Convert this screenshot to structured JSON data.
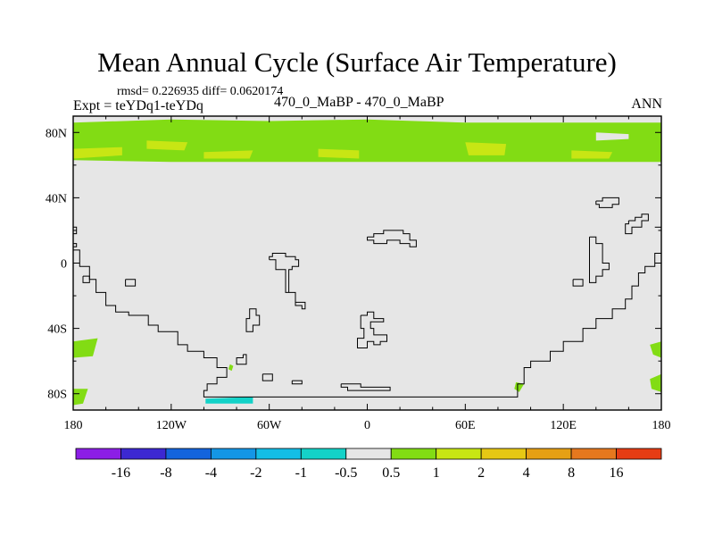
{
  "title": "Mean Annual Cycle (Surface Air Temperature)",
  "stats_text": "rmsd= 0.226935 diff= 0.0620174",
  "experiment_label": "Expt = teYDq1-teYDq",
  "case_label": "470_0_MaBP - 470_0_MaBP",
  "season_label": "ANN",
  "chart_data": {
    "type": "contour-map",
    "variable": "Surface Air Temperature difference",
    "xlim": [
      -180,
      180
    ],
    "ylim": [
      -90,
      90
    ],
    "x_ticks": [
      {
        "value": -180,
        "label": "180"
      },
      {
        "value": -120,
        "label": "120W"
      },
      {
        "value": -60,
        "label": "60W"
      },
      {
        "value": 0,
        "label": "0"
      },
      {
        "value": 60,
        "label": "60E"
      },
      {
        "value": 120,
        "label": "120E"
      },
      {
        "value": 180,
        "label": "180"
      }
    ],
    "y_ticks": [
      {
        "value": 80,
        "label": "80N"
      },
      {
        "value": 40,
        "label": "40N"
      },
      {
        "value": 0,
        "label": "0"
      },
      {
        "value": -40,
        "label": "40S"
      },
      {
        "value": -80,
        "label": "80S"
      }
    ],
    "colorbar": {
      "labels": [
        "-16",
        "-8",
        "-4",
        "-2",
        "-1",
        "-0.5",
        "0.5",
        "1",
        "2",
        "4",
        "8",
        "16"
      ],
      "colors": [
        "#8c1ee6",
        "#3c28d2",
        "#1464dc",
        "#1496e6",
        "#14bee6",
        "#14d2c8",
        "#e6e6e6",
        "#82dc14",
        "#c8e614",
        "#e6c814",
        "#e6a014",
        "#e6781e",
        "#e63c14"
      ]
    },
    "background_color": "#e6e6e6",
    "regions": [
      {
        "name": "arctic-band",
        "level": "0.5 to 1",
        "color": "#82dc14",
        "polygon": [
          [
            -180,
            86
          ],
          [
            -120,
            88
          ],
          [
            -60,
            87
          ],
          [
            0,
            88
          ],
          [
            60,
            86
          ],
          [
            120,
            86
          ],
          [
            180,
            86
          ],
          [
            180,
            62
          ],
          [
            120,
            62
          ],
          [
            60,
            62
          ],
          [
            0,
            62
          ],
          [
            -60,
            62
          ],
          [
            -120,
            62
          ],
          [
            -180,
            63
          ]
        ]
      },
      {
        "name": "arctic-warm-patch-1",
        "level": "1 to 2",
        "color": "#c8e614",
        "polygon": [
          [
            -180,
            70
          ],
          [
            -150,
            71
          ],
          [
            -150,
            66
          ],
          [
            -180,
            64
          ]
        ]
      },
      {
        "name": "arctic-warm-patch-2",
        "level": "1 to 2",
        "color": "#c8e614",
        "polygon": [
          [
            -135,
            75
          ],
          [
            -110,
            74
          ],
          [
            -112,
            69
          ],
          [
            -135,
            70
          ]
        ]
      },
      {
        "name": "arctic-warm-patch-3",
        "level": "1 to 2",
        "color": "#c8e614",
        "polygon": [
          [
            -100,
            68
          ],
          [
            -70,
            69
          ],
          [
            -72,
            64
          ],
          [
            -100,
            64
          ]
        ]
      },
      {
        "name": "arctic-warm-patch-4",
        "level": "1 to 2",
        "color": "#c8e614",
        "polygon": [
          [
            -30,
            70
          ],
          [
            -5,
            69
          ],
          [
            -5,
            64
          ],
          [
            -30,
            65
          ]
        ]
      },
      {
        "name": "arctic-warm-patch-5",
        "level": "1 to 2",
        "color": "#c8e614",
        "polygon": [
          [
            60,
            74
          ],
          [
            85,
            73
          ],
          [
            84,
            66
          ],
          [
            62,
            66
          ]
        ]
      },
      {
        "name": "arctic-warm-patch-6",
        "level": "1 to 2",
        "color": "#c8e614",
        "polygon": [
          [
            125,
            69
          ],
          [
            150,
            68
          ],
          [
            148,
            64
          ],
          [
            125,
            64
          ]
        ]
      },
      {
        "name": "arctic-neutral-gap",
        "level": "-0.5 to 0.5",
        "color": "#e6e6e6",
        "polygon": [
          [
            140,
            80
          ],
          [
            160,
            79
          ],
          [
            160,
            76
          ],
          [
            140,
            75
          ]
        ]
      },
      {
        "name": "south-pacific-west-patch",
        "level": "0.5 to 1",
        "color": "#82dc14",
        "polygon": [
          [
            -180,
            -48
          ],
          [
            -165,
            -46
          ],
          [
            -168,
            -57
          ],
          [
            -180,
            -58
          ]
        ]
      },
      {
        "name": "south-pacific-east-patch",
        "level": "0.5 to 1",
        "color": "#82dc14",
        "polygon": [
          [
            -180,
            -77
          ],
          [
            -171,
            -77
          ],
          [
            -174,
            -86
          ],
          [
            -180,
            -87
          ]
        ]
      },
      {
        "name": "dateline-east-patch-1",
        "level": "0.5 to 1",
        "color": "#82dc14",
        "polygon": [
          [
            173,
            -50
          ],
          [
            180,
            -48
          ],
          [
            180,
            -58
          ],
          [
            175,
            -56
          ]
        ]
      },
      {
        "name": "dateline-east-patch-2",
        "level": "0.5 to 1",
        "color": "#82dc14",
        "polygon": [
          [
            173,
            -71
          ],
          [
            180,
            -68
          ],
          [
            180,
            -79
          ],
          [
            174,
            -77
          ]
        ]
      },
      {
        "name": "indian-ocean-patch",
        "level": "0.5 to 1",
        "color": "#82dc14",
        "polygon": [
          [
            91,
            -73
          ],
          [
            96,
            -74
          ],
          [
            93,
            -79
          ],
          [
            90,
            -77
          ]
        ]
      },
      {
        "name": "antarctic-peninsula-patch",
        "level": "0.5 to 1",
        "color": "#82dc14",
        "polygon": [
          [
            -84,
            -62
          ],
          [
            -82,
            -63
          ],
          [
            -83,
            -66
          ],
          [
            -85,
            -65
          ]
        ]
      },
      {
        "name": "antarctic-cold-patch",
        "level": "-1 to -0.5",
        "color": "#14d2c8",
        "polygon": [
          [
            -99,
            -83
          ],
          [
            -70,
            -82
          ],
          [
            -70,
            -86
          ],
          [
            -99,
            -86
          ]
        ]
      }
    ],
    "coastlines": [
      [
        [
          -180,
          8
        ],
        [
          -176,
          8
        ],
        [
          -176,
          -2
        ],
        [
          -170,
          -2
        ],
        [
          -170,
          -10
        ],
        [
          -166,
          -10
        ],
        [
          -166,
          -18
        ],
        [
          -160,
          -18
        ],
        [
          -160,
          -26
        ],
        [
          -154,
          -26
        ],
        [
          -154,
          -30
        ],
        [
          -146,
          -30
        ],
        [
          -146,
          -32
        ],
        [
          -134,
          -32
        ],
        [
          -134,
          -38
        ],
        [
          -128,
          -38
        ],
        [
          -128,
          -42
        ],
        [
          -116,
          -42
        ],
        [
          -116,
          -50
        ],
        [
          -110,
          -50
        ],
        [
          -110,
          -54
        ],
        [
          -100,
          -54
        ],
        [
          -100,
          -58
        ],
        [
          -92,
          -58
        ],
        [
          -92,
          -64
        ],
        [
          -86,
          -64
        ],
        [
          -86,
          -70
        ],
        [
          -92,
          -70
        ],
        [
          -92,
          -74
        ],
        [
          -98,
          -74
        ],
        [
          -98,
          -78
        ],
        [
          -100,
          -78
        ],
        [
          -100,
          -82
        ],
        [
          92,
          -82
        ],
        [
          92,
          -74
        ],
        [
          96,
          -74
        ],
        [
          96,
          -64
        ],
        [
          100,
          -64
        ],
        [
          100,
          -60
        ],
        [
          112,
          -60
        ],
        [
          112,
          -54
        ],
        [
          120,
          -54
        ],
        [
          120,
          -48
        ],
        [
          132,
          -48
        ],
        [
          132,
          -40
        ],
        [
          140,
          -40
        ],
        [
          140,
          -34
        ],
        [
          150,
          -34
        ],
        [
          150,
          -28
        ],
        [
          158,
          -28
        ],
        [
          158,
          -22
        ],
        [
          162,
          -22
        ],
        [
          162,
          -14
        ],
        [
          166,
          -14
        ],
        [
          166,
          -6
        ],
        [
          170,
          -6
        ],
        [
          170,
          -2
        ],
        [
          176,
          -2
        ],
        [
          176,
          6
        ],
        [
          180,
          6
        ]
      ],
      [
        [
          -174,
          -8
        ],
        [
          -170,
          -8
        ],
        [
          -170,
          -12
        ],
        [
          -174,
          -12
        ],
        [
          -174,
          -8
        ]
      ],
      [
        [
          -148,
          -10
        ],
        [
          -142,
          -10
        ],
        [
          -142,
          -14
        ],
        [
          -148,
          -14
        ],
        [
          -148,
          -10
        ]
      ],
      [
        [
          -60,
          2
        ],
        [
          -56,
          2
        ],
        [
          -56,
          -4
        ],
        [
          -50,
          -4
        ],
        [
          -50,
          -18
        ],
        [
          -44,
          -18
        ],
        [
          -44,
          -26
        ],
        [
          -40,
          -26
        ],
        [
          -40,
          -28
        ],
        [
          -38,
          -28
        ],
        [
          -38,
          -24
        ],
        [
          -44,
          -24
        ],
        [
          -44,
          -18
        ],
        [
          -48,
          -18
        ],
        [
          -48,
          -4
        ],
        [
          -46,
          -4
        ],
        [
          -46,
          -2
        ],
        [
          -42,
          -2
        ],
        [
          -42,
          2
        ],
        [
          -44,
          2
        ],
        [
          -44,
          4
        ],
        [
          -50,
          4
        ],
        [
          -50,
          6
        ],
        [
          -58,
          6
        ],
        [
          -58,
          4
        ],
        [
          -60,
          4
        ],
        [
          -60,
          2
        ]
      ],
      [
        [
          -70,
          -28
        ],
        [
          -68,
          -28
        ],
        [
          -68,
          -32
        ],
        [
          -66,
          -32
        ],
        [
          -66,
          -38
        ],
        [
          -70,
          -38
        ],
        [
          -70,
          -42
        ],
        [
          -74,
          -42
        ],
        [
          -74,
          -34
        ],
        [
          -72,
          -34
        ],
        [
          -72,
          -28
        ],
        [
          -70,
          -28
        ]
      ],
      [
        [
          -76,
          -56
        ],
        [
          -74,
          -56
        ],
        [
          -74,
          -62
        ],
        [
          -80,
          -62
        ],
        [
          -80,
          -58
        ],
        [
          -76,
          -58
        ],
        [
          -76,
          -56
        ]
      ],
      [
        [
          -64,
          -68
        ],
        [
          -58,
          -68
        ],
        [
          -58,
          -72
        ],
        [
          -64,
          -72
        ],
        [
          -64,
          -68
        ]
      ],
      [
        [
          -46,
          -72
        ],
        [
          -40,
          -72
        ],
        [
          -40,
          -74
        ],
        [
          -46,
          -74
        ],
        [
          -46,
          -72
        ]
      ],
      [
        [
          -16,
          -74
        ],
        [
          -4,
          -74
        ],
        [
          -4,
          -76
        ],
        [
          14,
          -76
        ],
        [
          14,
          -78
        ],
        [
          -12,
          -78
        ],
        [
          -12,
          -76
        ],
        [
          -16,
          -76
        ],
        [
          -16,
          -74
        ]
      ],
      [
        [
          0,
          16
        ],
        [
          4,
          16
        ],
        [
          4,
          18
        ],
        [
          10,
          18
        ],
        [
          10,
          20
        ],
        [
          22,
          20
        ],
        [
          22,
          18
        ],
        [
          26,
          18
        ],
        [
          26,
          14
        ],
        [
          30,
          14
        ],
        [
          30,
          10
        ],
        [
          26,
          10
        ],
        [
          26,
          12
        ],
        [
          20,
          12
        ],
        [
          20,
          14
        ],
        [
          12,
          14
        ],
        [
          12,
          12
        ],
        [
          4,
          12
        ],
        [
          4,
          14
        ],
        [
          0,
          14
        ],
        [
          0,
          16
        ]
      ],
      [
        [
          -4,
          -32
        ],
        [
          0,
          -32
        ],
        [
          0,
          -30
        ],
        [
          4,
          -30
        ],
        [
          4,
          -34
        ],
        [
          10,
          -34
        ],
        [
          10,
          -36
        ],
        [
          2,
          -36
        ],
        [
          2,
          -40
        ],
        [
          4,
          -40
        ],
        [
          4,
          -44
        ],
        [
          12,
          -44
        ],
        [
          12,
          -48
        ],
        [
          8,
          -48
        ],
        [
          8,
          -50
        ],
        [
          4,
          -50
        ],
        [
          4,
          -48
        ],
        [
          0,
          -48
        ],
        [
          0,
          -52
        ],
        [
          -6,
          -52
        ],
        [
          -6,
          -46
        ],
        [
          -2,
          -46
        ],
        [
          -2,
          -40
        ],
        [
          -4,
          -40
        ],
        [
          -4,
          -32
        ]
      ],
      [
        [
          140,
          38
        ],
        [
          144,
          38
        ],
        [
          144,
          40
        ],
        [
          154,
          40
        ],
        [
          154,
          36
        ],
        [
          150,
          36
        ],
        [
          150,
          34
        ],
        [
          142,
          34
        ],
        [
          142,
          36
        ],
        [
          140,
          36
        ],
        [
          140,
          38
        ]
      ],
      [
        [
          160,
          26
        ],
        [
          164,
          26
        ],
        [
          164,
          28
        ],
        [
          168,
          28
        ],
        [
          168,
          30
        ],
        [
          172,
          30
        ],
        [
          172,
          26
        ],
        [
          168,
          26
        ],
        [
          168,
          22
        ],
        [
          162,
          22
        ],
        [
          162,
          18
        ],
        [
          158,
          18
        ],
        [
          158,
          24
        ],
        [
          160,
          24
        ],
        [
          160,
          26
        ]
      ],
      [
        [
          176,
          22
        ],
        [
          180,
          22
        ]
      ],
      [
        [
          136,
          16
        ],
        [
          140,
          16
        ],
        [
          140,
          12
        ],
        [
          144,
          12
        ],
        [
          144,
          0
        ],
        [
          148,
          0
        ],
        [
          148,
          -4
        ],
        [
          144,
          -4
        ],
        [
          144,
          -8
        ],
        [
          140,
          -8
        ],
        [
          140,
          -12
        ],
        [
          136,
          -12
        ],
        [
          136,
          16
        ]
      ],
      [
        [
          126,
          -10
        ],
        [
          132,
          -10
        ],
        [
          132,
          -14
        ],
        [
          126,
          -14
        ],
        [
          126,
          -10
        ]
      ],
      [
        [
          -180,
          22
        ],
        [
          -178,
          22
        ],
        [
          -178,
          18
        ],
        [
          -180,
          18
        ]
      ],
      [
        [
          -180,
          12
        ],
        [
          -178,
          12
        ],
        [
          -178,
          10
        ],
        [
          -180,
          10
        ]
      ]
    ]
  }
}
